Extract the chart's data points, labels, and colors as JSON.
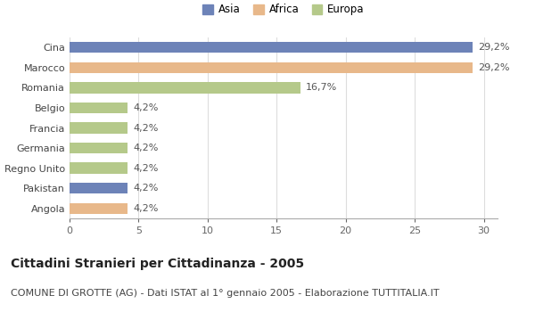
{
  "categories": [
    "Cina",
    "Marocco",
    "Romania",
    "Belgio",
    "Francia",
    "Germania",
    "Regno Unito",
    "Pakistan",
    "Angola"
  ],
  "values": [
    29.2,
    29.2,
    16.7,
    4.2,
    4.2,
    4.2,
    4.2,
    4.2,
    4.2
  ],
  "labels": [
    "29,2%",
    "29,2%",
    "16,7%",
    "4,2%",
    "4,2%",
    "4,2%",
    "4,2%",
    "4,2%",
    "4,2%"
  ],
  "colors": [
    "#6d83b8",
    "#e8b88a",
    "#b5c98a",
    "#b5c98a",
    "#b5c98a",
    "#b5c98a",
    "#b5c98a",
    "#6d83b8",
    "#e8b88a"
  ],
  "legend": [
    {
      "label": "Asia",
      "color": "#6d83b8"
    },
    {
      "label": "Africa",
      "color": "#e8b88a"
    },
    {
      "label": "Europa",
      "color": "#b5c98a"
    }
  ],
  "xlim": [
    0,
    31
  ],
  "xticks": [
    0,
    5,
    10,
    15,
    20,
    25,
    30
  ],
  "title": "Cittadini Stranieri per Cittadinanza - 2005",
  "subtitle": "COMUNE DI GROTTE (AG) - Dati ISTAT al 1° gennaio 2005 - Elaborazione TUTTITALIA.IT",
  "background_color": "#ffffff",
  "bar_height": 0.55,
  "title_fontsize": 10,
  "subtitle_fontsize": 8,
  "label_fontsize": 8,
  "tick_fontsize": 8
}
